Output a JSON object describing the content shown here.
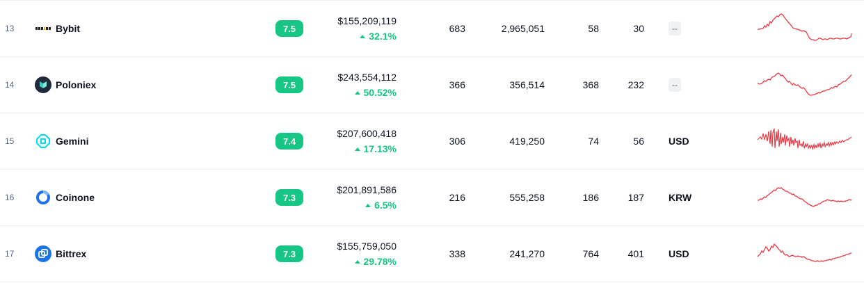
{
  "rows": [
    {
      "rank": "13",
      "name": "Bybit",
      "logo": "bybit-logo",
      "score": "7.5",
      "volume": "$155,209,119",
      "volume_change": "32.1%",
      "markets": "683",
      "coins": "2,965,051",
      "col_a": "58",
      "col_b": "30",
      "fiat": "--"
    },
    {
      "rank": "14",
      "name": "Poloniex",
      "logo": "poloniex-logo",
      "score": "7.5",
      "volume": "$243,554,112",
      "volume_change": "50.52%",
      "markets": "366",
      "coins": "356,514",
      "col_a": "368",
      "col_b": "232",
      "fiat": "--"
    },
    {
      "rank": "15",
      "name": "Gemini",
      "logo": "gemini-logo",
      "score": "7.4",
      "volume": "$207,600,418",
      "volume_change": "17.13%",
      "markets": "306",
      "coins": "419,250",
      "col_a": "74",
      "col_b": "56",
      "fiat": "USD"
    },
    {
      "rank": "16",
      "name": "Coinone",
      "logo": "coinone-logo",
      "score": "7.3",
      "volume": "$201,891,586",
      "volume_change": "6.5%",
      "markets": "216",
      "coins": "555,258",
      "col_a": "186",
      "col_b": "187",
      "fiat": "KRW"
    },
    {
      "rank": "17",
      "name": "Bittrex",
      "logo": "bittrex-logo",
      "score": "7.3",
      "volume": "$155,759,050",
      "volume_change": "29.78%",
      "markets": "338",
      "coins": "241,270",
      "col_a": "764",
      "col_b": "401",
      "fiat": "USD"
    }
  ],
  "colors": {
    "positive": "#16c784",
    "sparkline": "#ea3943",
    "score_bg": "#16c784",
    "divider": "#eff2f5"
  }
}
